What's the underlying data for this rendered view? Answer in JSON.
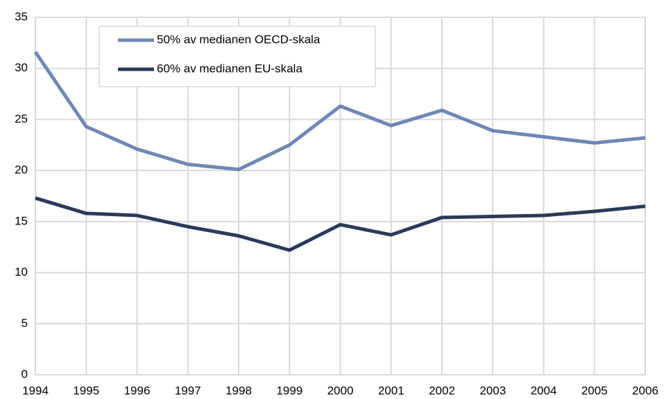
{
  "chart_data": {
    "type": "line",
    "x": [
      1994,
      1995,
      1996,
      1997,
      1998,
      1999,
      2000,
      2001,
      2002,
      2003,
      2004,
      2005,
      2006
    ],
    "series": [
      {
        "name": "50% av medianen OECD-skala",
        "color": "#6f87b4",
        "values": [
          31.6,
          24.3,
          22.1,
          20.6,
          20.1,
          22.5,
          26.3,
          24.4,
          25.9,
          23.9,
          23.3,
          22.7,
          23.2
        ]
      },
      {
        "name": "60% av medianen EU-skala",
        "color": "#2b3a5a",
        "values": [
          17.3,
          15.8,
          15.6,
          14.5,
          13.6,
          12.2,
          14.7,
          13.7,
          15.4,
          15.5,
          15.6,
          16.0,
          16.5
        ]
      }
    ],
    "xlim": [
      1994,
      2006
    ],
    "xticks": [
      1994,
      1995,
      1996,
      1997,
      1998,
      1999,
      2000,
      2001,
      2002,
      2003,
      2004,
      2005,
      2006
    ],
    "ylim": [
      0,
      35
    ],
    "yticks": [
      0,
      5,
      10,
      15,
      20,
      25,
      30,
      35
    ],
    "grid": true
  }
}
